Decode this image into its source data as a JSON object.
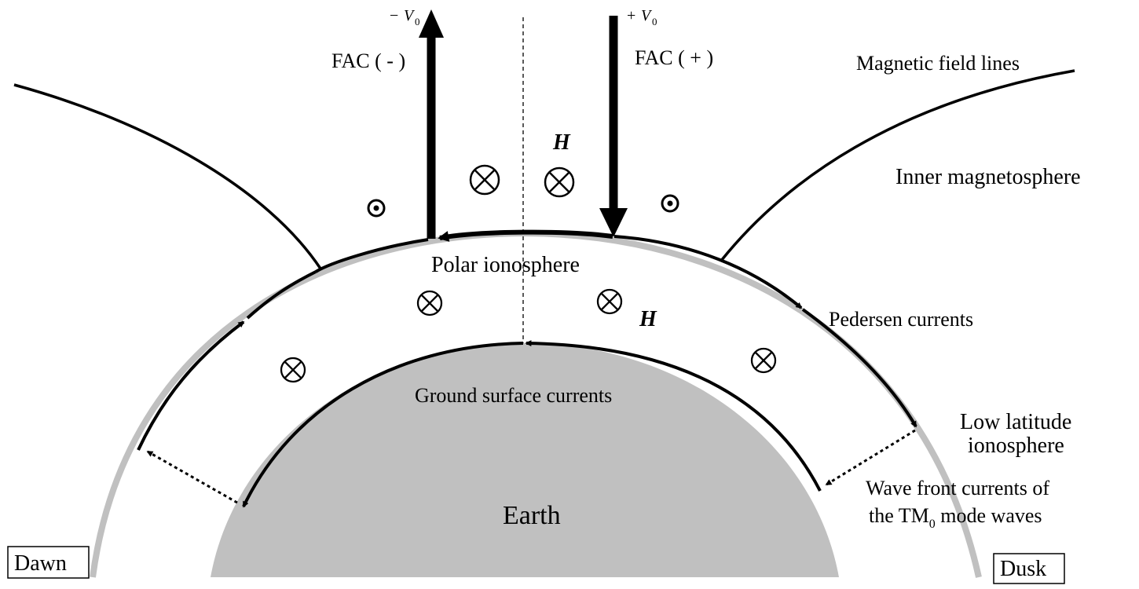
{
  "labels": {
    "fac_minus": "FAC ( - )",
    "fac_plus": "FAC ( + )",
    "v0_minus_sign": "−",
    "v0_plus_sign": "+",
    "v0_symbol": "V",
    "v0_subscript": "0",
    "magnetic_field_lines": "Magnetic field lines",
    "inner_magnetosphere": "Inner magnetosphere",
    "polar_ionosphere": "Polar ionosphere",
    "pedersen_currents": "Pedersen currents",
    "ground_surface_currents": "Ground surface currents",
    "low_latitude_line1": "Low latitude",
    "low_latitude_line2": "ionosphere",
    "wave_front_line1": "Wave front currents of",
    "wave_front_line2_prefix": "the TM",
    "wave_front_line2_subscript": "0",
    "wave_front_line2_suffix": " mode waves",
    "earth": "Earth",
    "h_upper": "H",
    "h_lower": "H",
    "dawn": "Dawn",
    "dusk": "Dusk"
  },
  "colors": {
    "ionosphere_shell": "#c0c0c0",
    "earth_fill": "#c0c0c0",
    "ink": "#000000"
  }
}
